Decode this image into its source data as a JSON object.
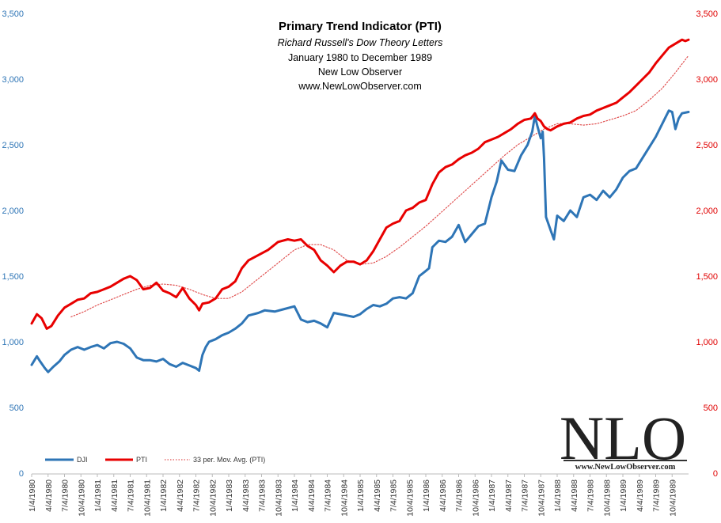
{
  "chart_data": {
    "type": "line",
    "title": "Primary Trend Indicator (PTI)",
    "subtitle_lines": [
      "Richard Russell's Dow Theory Letters",
      "January 1980  to December 1989",
      "New Low Observer",
      "www.NewLowObserver.com"
    ],
    "ylim": [
      0,
      3500
    ],
    "y_ticks_left": [
      "0",
      "500",
      "1,000",
      "1,500",
      "2,000",
      "2,500",
      "3,000",
      "3,500"
    ],
    "y_ticks_right": [
      "0",
      "500",
      "1,000",
      "1,500",
      "2,000",
      "2,500",
      "3,000",
      "3,500"
    ],
    "x_tick_labels": [
      "1/4/1980",
      "4/4/1980",
      "7/4/1980",
      "10/4/1980",
      "1/4/1981",
      "4/4/1981",
      "7/4/1981",
      "10/4/1981",
      "1/4/1982",
      "4/4/1982",
      "7/4/1982",
      "10/4/1982",
      "1/4/1983",
      "4/4/1983",
      "7/4/1983",
      "10/4/1983",
      "1/4/1984",
      "4/4/1984",
      "7/4/1984",
      "10/4/1984",
      "1/4/1985",
      "4/4/1985",
      "7/4/1985",
      "10/4/1985",
      "1/4/1986",
      "4/4/1986",
      "7/4/1986",
      "10/4/1986",
      "1/4/1987",
      "4/4/1987",
      "7/4/1987",
      "10/4/1987",
      "1/4/1988",
      "4/4/1988",
      "7/4/1988",
      "10/4/1988",
      "1/4/1989",
      "4/4/1989",
      "7/4/1989",
      "10/4/1989"
    ],
    "x_domain": [
      1980.0,
      1990.0
    ],
    "legend_position": "bottom-left",
    "series": [
      {
        "name": "DJI",
        "color": "#2E75B6",
        "style": "solid",
        "x": [
          1980.0,
          1980.08,
          1980.13,
          1980.2,
          1980.25,
          1980.33,
          1980.42,
          1980.5,
          1980.6,
          1980.7,
          1980.8,
          1980.9,
          1981.0,
          1981.1,
          1981.2,
          1981.3,
          1981.4,
          1981.5,
          1981.6,
          1981.7,
          1981.8,
          1981.9,
          1982.0,
          1982.1,
          1982.2,
          1982.3,
          1982.4,
          1982.5,
          1982.55,
          1982.6,
          1982.65,
          1982.7,
          1982.8,
          1982.9,
          1983.0,
          1983.1,
          1983.2,
          1983.3,
          1983.45,
          1983.55,
          1983.7,
          1983.85,
          1984.0,
          1984.1,
          1984.2,
          1984.3,
          1984.4,
          1984.5,
          1984.6,
          1984.7,
          1984.8,
          1984.9,
          1985.0,
          1985.1,
          1985.2,
          1985.3,
          1985.4,
          1985.5,
          1985.6,
          1985.7,
          1985.8,
          1985.9,
          1986.0,
          1986.05,
          1986.1,
          1986.2,
          1986.3,
          1986.4,
          1986.5,
          1986.6,
          1986.7,
          1986.8,
          1986.9,
          1987.0,
          1987.08,
          1987.15,
          1987.25,
          1987.35,
          1987.45,
          1987.55,
          1987.62,
          1987.66,
          1987.7,
          1987.75,
          1987.78,
          1987.8,
          1987.83,
          1987.9,
          1987.95,
          1988.0,
          1988.1,
          1988.2,
          1988.3,
          1988.4,
          1988.5,
          1988.6,
          1988.7,
          1988.8,
          1988.9,
          1989.0,
          1989.1,
          1989.2,
          1989.3,
          1989.4,
          1989.5,
          1989.6,
          1989.7,
          1989.75,
          1989.8,
          1989.85,
          1989.9,
          1990.0
        ],
        "values": [
          825,
          890,
          850,
          800,
          770,
          810,
          850,
          900,
          940,
          960,
          940,
          960,
          975,
          950,
          990,
          1000,
          985,
          950,
          880,
          860,
          860,
          850,
          870,
          830,
          810,
          840,
          820,
          800,
          780,
          900,
          960,
          1000,
          1020,
          1050,
          1070,
          1100,
          1140,
          1200,
          1220,
          1240,
          1230,
          1250,
          1270,
          1170,
          1150,
          1160,
          1140,
          1110,
          1220,
          1210,
          1200,
          1190,
          1210,
          1250,
          1280,
          1270,
          1290,
          1330,
          1340,
          1330,
          1370,
          1500,
          1540,
          1560,
          1720,
          1770,
          1760,
          1800,
          1890,
          1760,
          1820,
          1880,
          1900,
          2100,
          2220,
          2380,
          2310,
          2300,
          2420,
          2500,
          2600,
          2720,
          2640,
          2550,
          2600,
          2400,
          1950,
          1850,
          1780,
          1960,
          1920,
          2000,
          1950,
          2100,
          2120,
          2080,
          2150,
          2100,
          2160,
          2250,
          2300,
          2320,
          2400,
          2480,
          2560,
          2660,
          2760,
          2750,
          2620,
          2700,
          2740,
          2750
        ]
      },
      {
        "name": "PTI",
        "color": "#E80000",
        "style": "solid",
        "x": [
          1980.0,
          1980.08,
          1980.15,
          1980.23,
          1980.3,
          1980.4,
          1980.5,
          1980.6,
          1980.7,
          1980.8,
          1980.9,
          1981.0,
          1981.1,
          1981.2,
          1981.3,
          1981.4,
          1981.5,
          1981.6,
          1981.7,
          1981.8,
          1981.9,
          1982.0,
          1982.1,
          1982.2,
          1982.3,
          1982.4,
          1982.5,
          1982.55,
          1982.6,
          1982.7,
          1982.8,
          1982.9,
          1983.0,
          1983.1,
          1983.2,
          1983.3,
          1983.45,
          1983.6,
          1983.75,
          1983.9,
          1984.0,
          1984.1,
          1984.2,
          1984.3,
          1984.4,
          1984.5,
          1984.6,
          1984.7,
          1984.8,
          1984.9,
          1985.0,
          1985.1,
          1985.2,
          1985.3,
          1985.4,
          1985.5,
          1985.6,
          1985.7,
          1985.8,
          1985.9,
          1986.0,
          1986.1,
          1986.2,
          1986.3,
          1986.4,
          1986.5,
          1986.6,
          1986.7,
          1986.8,
          1986.9,
          1987.0,
          1987.1,
          1987.2,
          1987.3,
          1987.4,
          1987.5,
          1987.6,
          1987.66,
          1987.7,
          1987.75,
          1987.8,
          1987.85,
          1987.9,
          1988.0,
          1988.1,
          1988.2,
          1988.3,
          1988.4,
          1988.5,
          1988.6,
          1988.7,
          1988.8,
          1988.9,
          1989.0,
          1989.1,
          1989.2,
          1989.3,
          1989.4,
          1989.5,
          1989.6,
          1989.7,
          1989.8,
          1989.9,
          1989.95,
          1990.0
        ],
        "values": [
          1140,
          1210,
          1180,
          1100,
          1120,
          1200,
          1260,
          1290,
          1320,
          1330,
          1370,
          1380,
          1400,
          1420,
          1450,
          1480,
          1500,
          1470,
          1400,
          1410,
          1450,
          1390,
          1370,
          1340,
          1410,
          1330,
          1280,
          1240,
          1290,
          1300,
          1330,
          1400,
          1420,
          1460,
          1560,
          1620,
          1660,
          1700,
          1760,
          1780,
          1770,
          1780,
          1730,
          1700,
          1620,
          1580,
          1530,
          1580,
          1610,
          1610,
          1590,
          1620,
          1690,
          1780,
          1870,
          1900,
          1920,
          2000,
          2020,
          2060,
          2080,
          2200,
          2290,
          2330,
          2350,
          2390,
          2420,
          2440,
          2470,
          2520,
          2540,
          2560,
          2590,
          2620,
          2660,
          2690,
          2700,
          2740,
          2700,
          2680,
          2640,
          2620,
          2610,
          2640,
          2660,
          2670,
          2700,
          2720,
          2730,
          2760,
          2780,
          2800,
          2820,
          2860,
          2900,
          2950,
          3000,
          3050,
          3120,
          3180,
          3240,
          3270,
          3300,
          3290,
          3300
        ]
      },
      {
        "name": "33 per. Mov. Avg. (PTI)",
        "color": "#E05050",
        "style": "dotted",
        "x": [
          1980.6,
          1980.8,
          1981.0,
          1981.2,
          1981.4,
          1981.6,
          1981.8,
          1982.0,
          1982.2,
          1982.4,
          1982.6,
          1982.8,
          1983.0,
          1983.2,
          1983.4,
          1983.6,
          1983.8,
          1984.0,
          1984.2,
          1984.4,
          1984.6,
          1984.8,
          1985.0,
          1985.2,
          1985.4,
          1985.6,
          1985.8,
          1986.0,
          1986.2,
          1986.4,
          1986.6,
          1986.8,
          1987.0,
          1987.2,
          1987.4,
          1987.6,
          1987.8,
          1988.0,
          1988.2,
          1988.4,
          1988.6,
          1988.8,
          1989.0,
          1989.2,
          1989.4,
          1989.6,
          1989.8,
          1990.0
        ],
        "values": [
          1190,
          1230,
          1280,
          1320,
          1360,
          1400,
          1430,
          1440,
          1430,
          1400,
          1360,
          1330,
          1330,
          1380,
          1460,
          1540,
          1620,
          1700,
          1740,
          1740,
          1700,
          1620,
          1590,
          1600,
          1650,
          1720,
          1800,
          1880,
          1970,
          2060,
          2150,
          2240,
          2330,
          2420,
          2500,
          2560,
          2620,
          2660,
          2660,
          2650,
          2660,
          2690,
          2720,
          2760,
          2840,
          2930,
          3050,
          3180
        ]
      }
    ],
    "watermark_logo": "NLO",
    "watermark_site": "www.NewLowObserver.com"
  }
}
